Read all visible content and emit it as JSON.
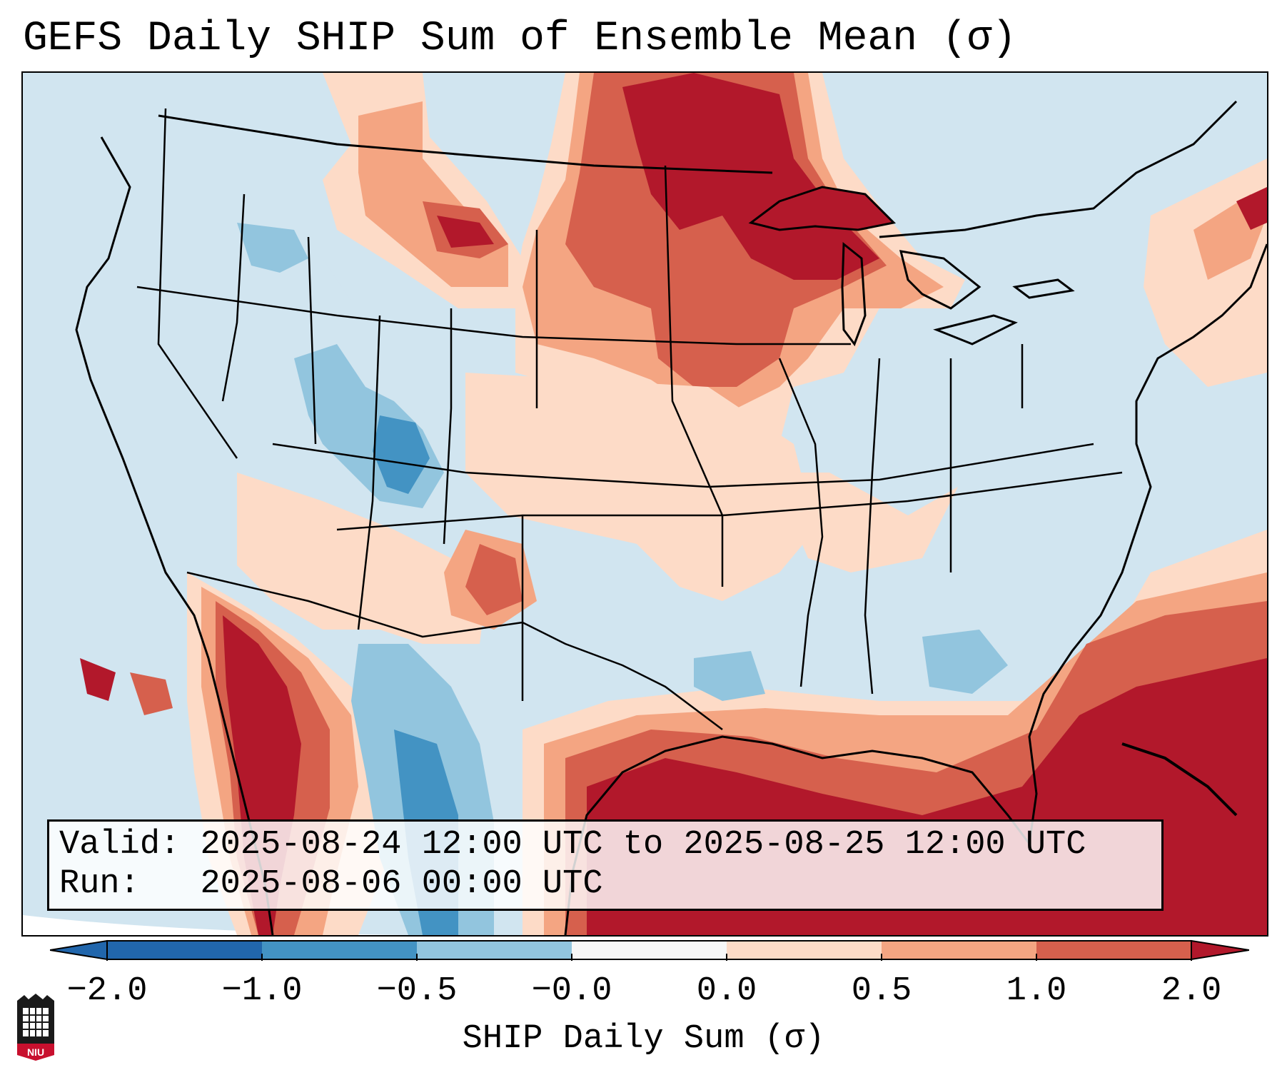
{
  "title": "GEFS Daily SHIP Sum of Ensemble Mean (σ)",
  "info_box": {
    "valid_label": "Valid:",
    "valid_value": "2025-08-24 12:00 UTC to 2025-08-25 12:00 UTC",
    "run_label": "Run:",
    "run_value": "2025-08-06 00:00 UTC"
  },
  "colorbar": {
    "label": "SHIP Daily Sum (σ)",
    "ticks": [
      "−2.0",
      "−1.0",
      "−0.5",
      "−0.0",
      "0.0",
      "0.5",
      "1.0",
      "2.0"
    ],
    "colors": [
      "#2166ac",
      "#4393c3",
      "#92c5de",
      "#d1e5f0",
      "#f7f7f7",
      "#fddbc7",
      "#f4a582",
      "#d6604d",
      "#b2182b"
    ],
    "min_color": "#2166ac",
    "max_color": "#b2182b"
  },
  "logo": {
    "name": "NIU",
    "text": "NIU"
  }
}
